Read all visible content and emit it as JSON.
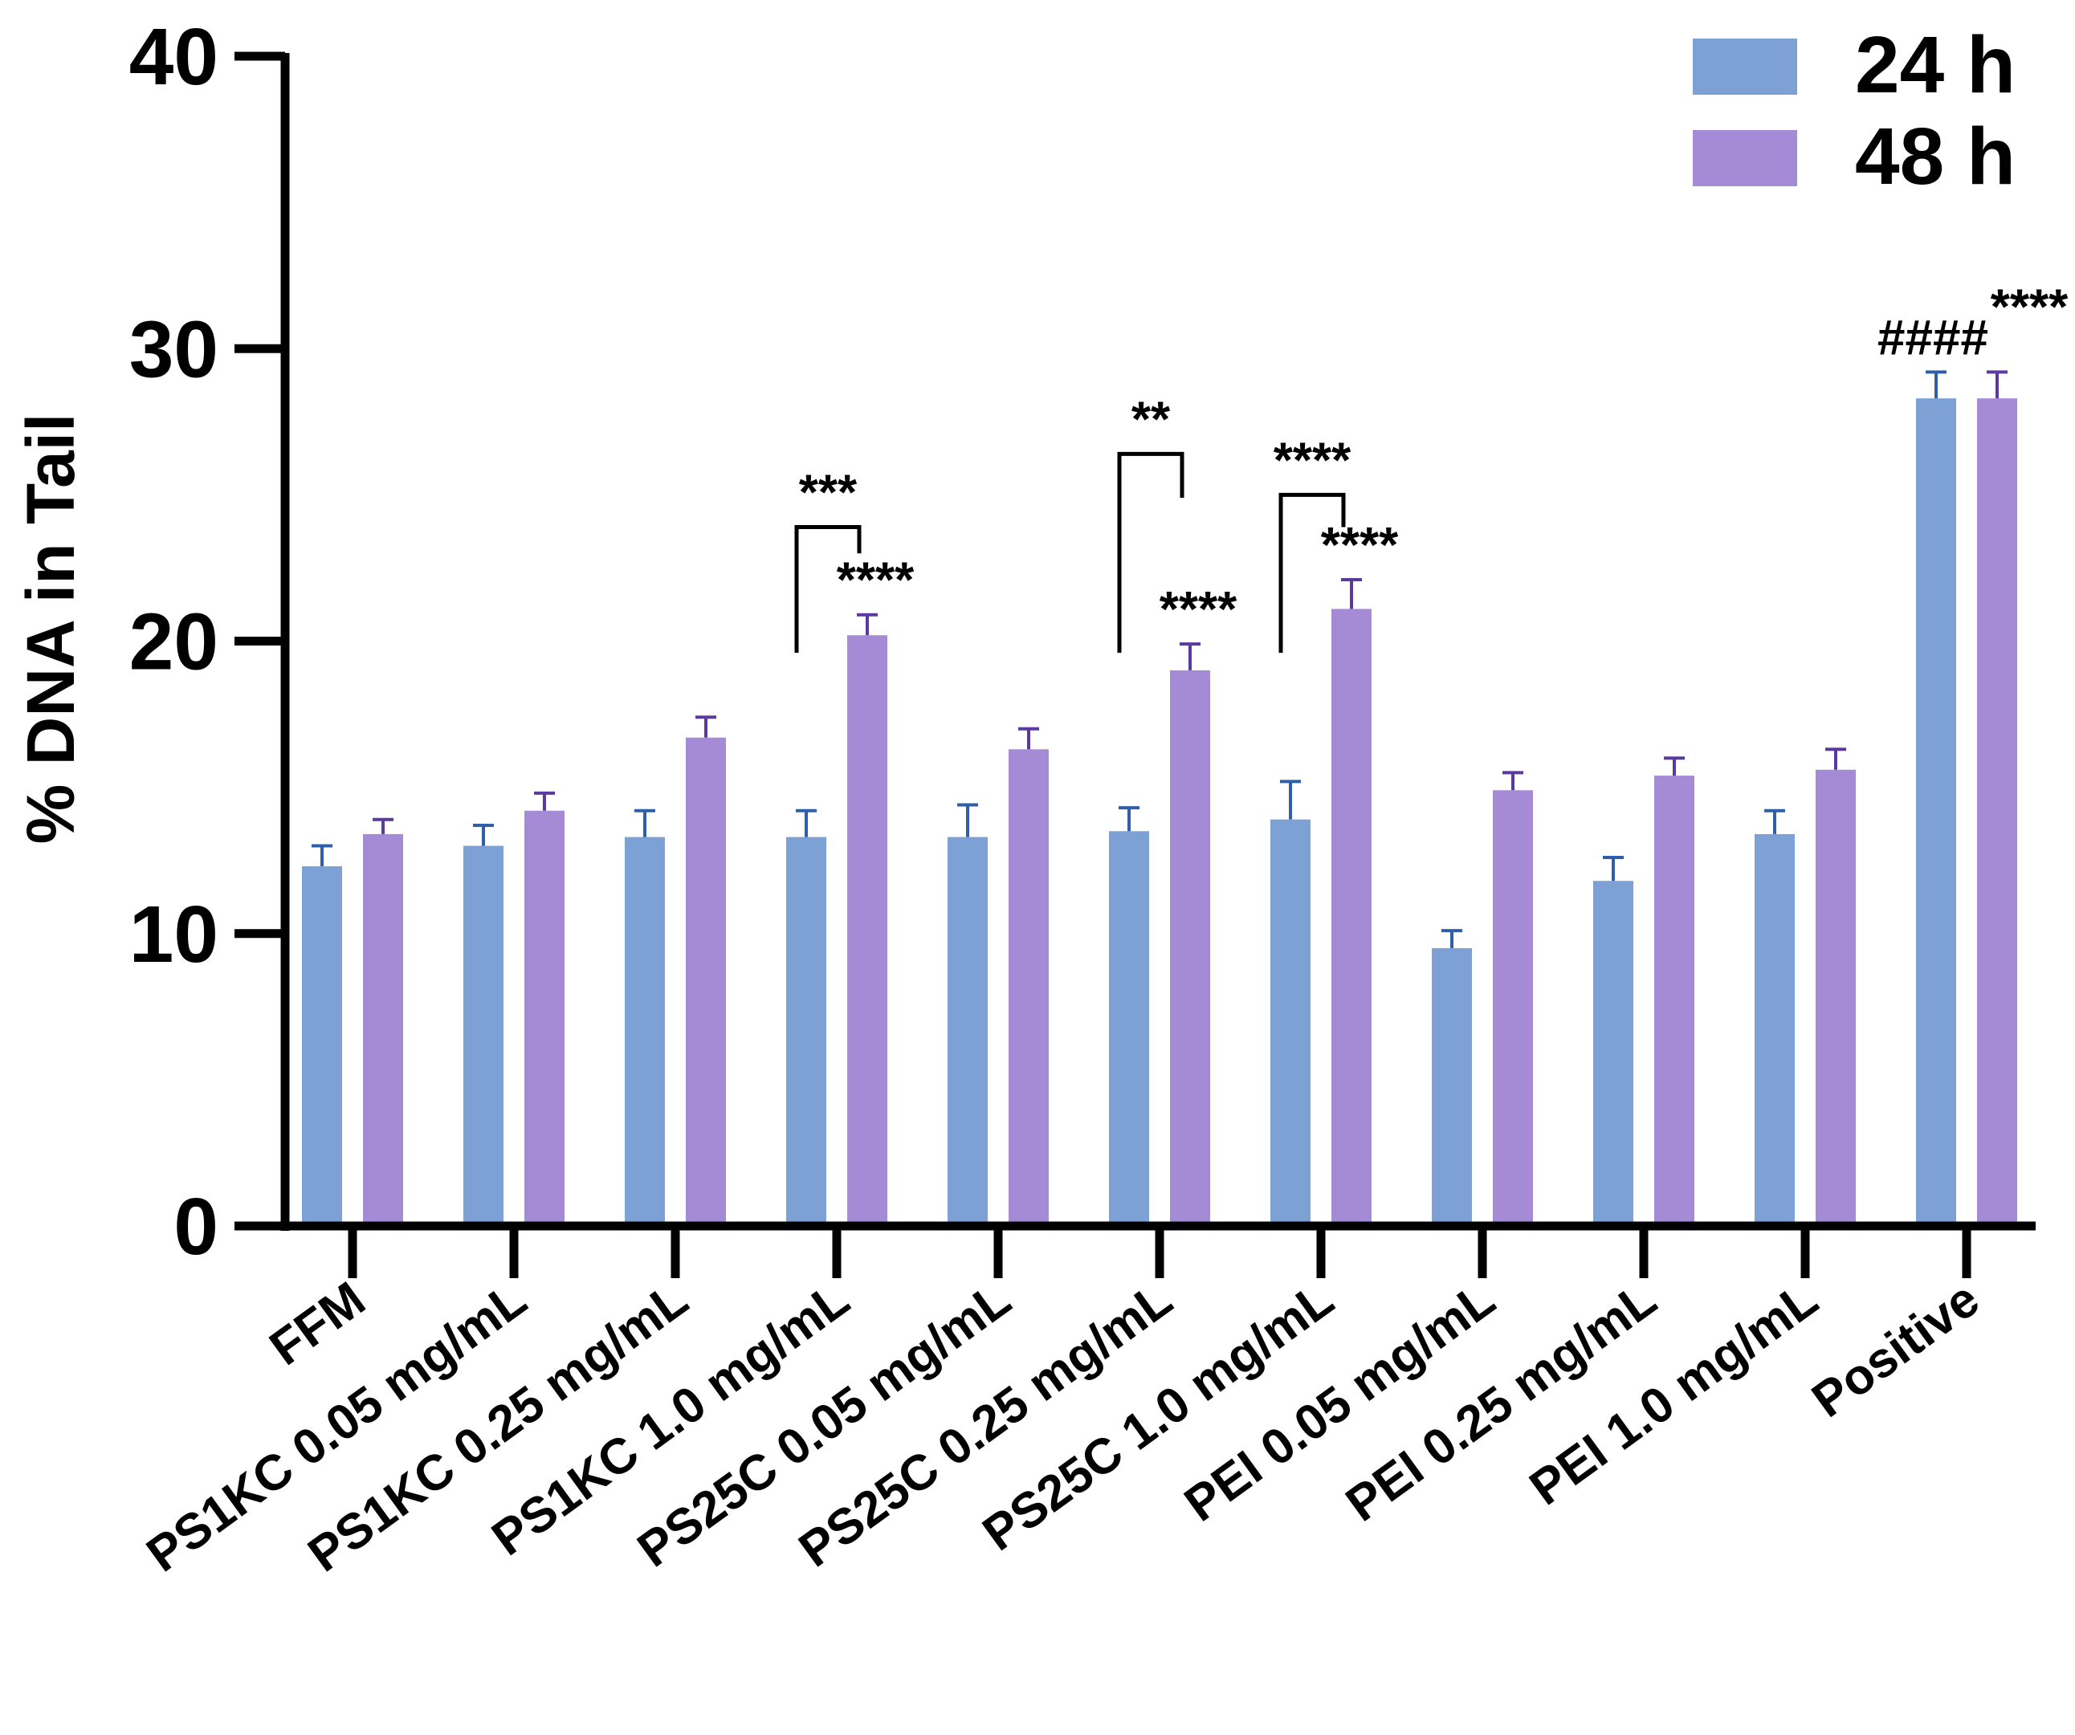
{
  "chart_data": {
    "type": "bar",
    "title": "",
    "xlabel": "",
    "ylabel": "% DNA in Tail",
    "ylim": [
      0,
      40
    ],
    "yticks": [
      0,
      10,
      20,
      30,
      40
    ],
    "grid": false,
    "legend_position": "top-right",
    "categories": [
      "FFM",
      "PS1KC 0.05 mg/mL",
      "PS1KC 0.25 mg/mL",
      "PS1KC 1.0 mg/mL",
      "PS25C 0.05 mg/mL",
      "PS25C 0.25 mg/mL",
      "PS25C 1.0 mg/mL",
      "PEI 0.05 mg/mL",
      "PEI 0.25 mg/mL",
      "PEI 1.0 mg/mL",
      "Positive"
    ],
    "series": [
      {
        "name": "24 h",
        "color": "#7da1d4",
        "error_color": "#2f5fa8",
        "values": [
          12.3,
          13.0,
          13.3,
          13.3,
          13.3,
          13.5,
          13.9,
          9.5,
          11.8,
          13.4,
          28.3
        ],
        "errors": [
          0.7,
          0.7,
          0.9,
          0.9,
          1.1,
          0.8,
          1.3,
          0.6,
          0.8,
          0.8,
          0.9
        ]
      },
      {
        "name": "48 h",
        "color": "#a58bd5",
        "error_color": "#5a3a9e",
        "values": [
          13.4,
          14.2,
          16.7,
          20.2,
          16.3,
          19.0,
          21.1,
          14.9,
          15.4,
          15.6,
          28.3
        ],
        "errors": [
          0.5,
          0.6,
          0.7,
          0.7,
          0.7,
          0.9,
          1.0,
          0.6,
          0.6,
          0.7,
          0.9
        ]
      }
    ],
    "annotations": [
      {
        "text": "****",
        "category": 3,
        "series": 1
      },
      {
        "text": "****",
        "category": 5,
        "series": 1
      },
      {
        "text": "****",
        "category": 6,
        "series": 1
      },
      {
        "text": "####",
        "category": 10,
        "series": 0
      },
      {
        "text": "****",
        "category": 10,
        "series": 1
      }
    ],
    "brackets": [
      {
        "text": "***",
        "category": 3,
        "left_value": 19.6,
        "top_value": 23.9,
        "right_value": 23.0
      },
      {
        "text": "**",
        "category": 5,
        "left_value": 19.6,
        "top_value": 26.4,
        "right_value": 24.9
      },
      {
        "text": "****",
        "category": 6,
        "left_value": 19.6,
        "top_value": 25.0,
        "right_value": 23.9
      }
    ]
  }
}
